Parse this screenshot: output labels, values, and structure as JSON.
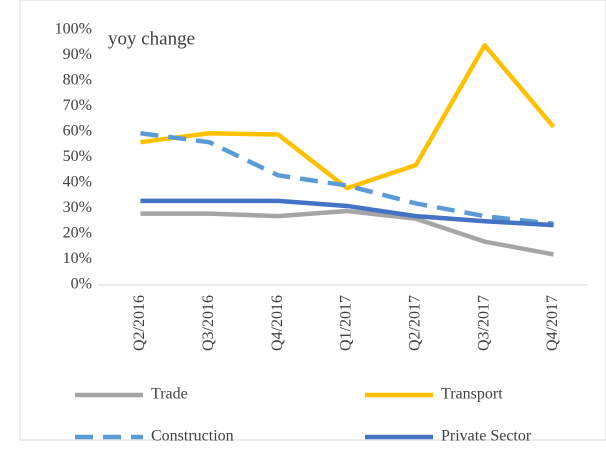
{
  "chart_data": {
    "type": "line",
    "annotation": "yoy change",
    "categories": [
      "Q2/2016",
      "Q3/2016",
      "Q4/2016",
      "Q1/2017",
      "Q2/2017",
      "Q3/2017",
      "Q4/2017"
    ],
    "series": [
      {
        "name": "Trade",
        "color": "#a5a5a5",
        "dashed": false,
        "values": [
          28,
          28,
          27,
          29,
          26,
          17,
          12
        ]
      },
      {
        "name": "Transport",
        "color": "#ffc000",
        "dashed": false,
        "values": [
          56,
          59.5,
          59,
          38,
          47,
          94,
          62
        ]
      },
      {
        "name": "Construction",
        "color": "#5b9bd5",
        "dashed": true,
        "values": [
          59.5,
          56,
          43,
          39,
          32,
          27,
          24
        ]
      },
      {
        "name": "Private Sector",
        "color": "#4472c4",
        "dashed": false,
        "values": [
          33,
          33,
          33,
          31,
          27,
          25,
          23.5
        ]
      }
    ],
    "ylim": [
      0,
      100
    ],
    "yticks": [
      {
        "value": 0,
        "label": "0%"
      },
      {
        "value": 10,
        "label": "10%"
      },
      {
        "value": 20,
        "label": "20%"
      },
      {
        "value": 30,
        "label": "30%"
      },
      {
        "value": 40,
        "label": "40%"
      },
      {
        "value": 50,
        "label": "50%"
      },
      {
        "value": 60,
        "label": "60%"
      },
      {
        "value": 70,
        "label": "70%"
      },
      {
        "value": 80,
        "label": "80%"
      },
      {
        "value": 90,
        "label": "90%"
      },
      {
        "value": 100,
        "label": "100%"
      }
    ],
    "grid": false,
    "legend": "bottom"
  }
}
